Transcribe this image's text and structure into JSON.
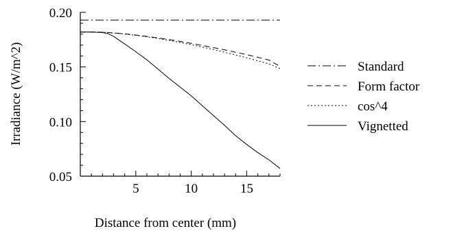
{
  "chart_data": {
    "type": "line",
    "title": "",
    "xlabel": "Distance from center (mm)",
    "ylabel": "Irradiance (W/m^2)",
    "xlim": [
      0,
      18
    ],
    "ylim": [
      0.05,
      0.2
    ],
    "grid": false,
    "legend_position": "right",
    "x_ticks": [
      5,
      10,
      15
    ],
    "x_tick_labels": [
      "5",
      "10",
      "15"
    ],
    "y_ticks": [
      0.05,
      0.1,
      0.15,
      0.2
    ],
    "y_tick_labels": [
      "0.05",
      "0.10",
      "0.15",
      "0.20"
    ],
    "series": [
      {
        "name": "Standard",
        "dash": "dash-dot",
        "x": [
          0,
          18
        ],
        "y": [
          0.193,
          0.193
        ]
      },
      {
        "name": "Form factor",
        "dash": "dashed",
        "x": [
          0,
          1,
          2,
          3,
          4,
          5,
          6,
          7,
          8,
          9,
          10,
          11,
          12,
          13,
          14,
          15,
          16,
          17,
          18
        ],
        "y": [
          0.182,
          0.182,
          0.1818,
          0.1812,
          0.1803,
          0.1792,
          0.178,
          0.1766,
          0.1751,
          0.1734,
          0.1716,
          0.1697,
          0.1677,
          0.1657,
          0.1635,
          0.1613,
          0.1588,
          0.1563,
          0.1505
        ]
      },
      {
        "name": "cos^4",
        "dash": "dotted",
        "x": [
          0,
          1,
          2,
          3,
          4,
          5,
          6,
          7,
          8,
          9,
          10,
          11,
          12,
          13,
          14,
          15,
          16,
          17,
          18
        ],
        "y": [
          0.182,
          0.182,
          0.1818,
          0.1811,
          0.1801,
          0.179,
          0.1776,
          0.176,
          0.1743,
          0.1724,
          0.1704,
          0.1682,
          0.1659,
          0.1635,
          0.161,
          0.1584,
          0.1556,
          0.1528,
          0.1485
        ]
      },
      {
        "name": "Vignetted",
        "dash": "solid",
        "x": [
          0,
          1,
          2,
          2.5,
          3,
          4,
          5,
          6,
          7,
          8,
          9,
          10,
          11,
          12,
          13,
          14,
          15,
          16,
          17,
          18
        ],
        "y": [
          0.182,
          0.182,
          0.1815,
          0.1805,
          0.178,
          0.171,
          0.164,
          0.1565,
          0.148,
          0.1395,
          0.1315,
          0.1235,
          0.1145,
          0.1055,
          0.0965,
          0.087,
          0.079,
          0.0715,
          0.065,
          0.057
        ]
      }
    ]
  }
}
